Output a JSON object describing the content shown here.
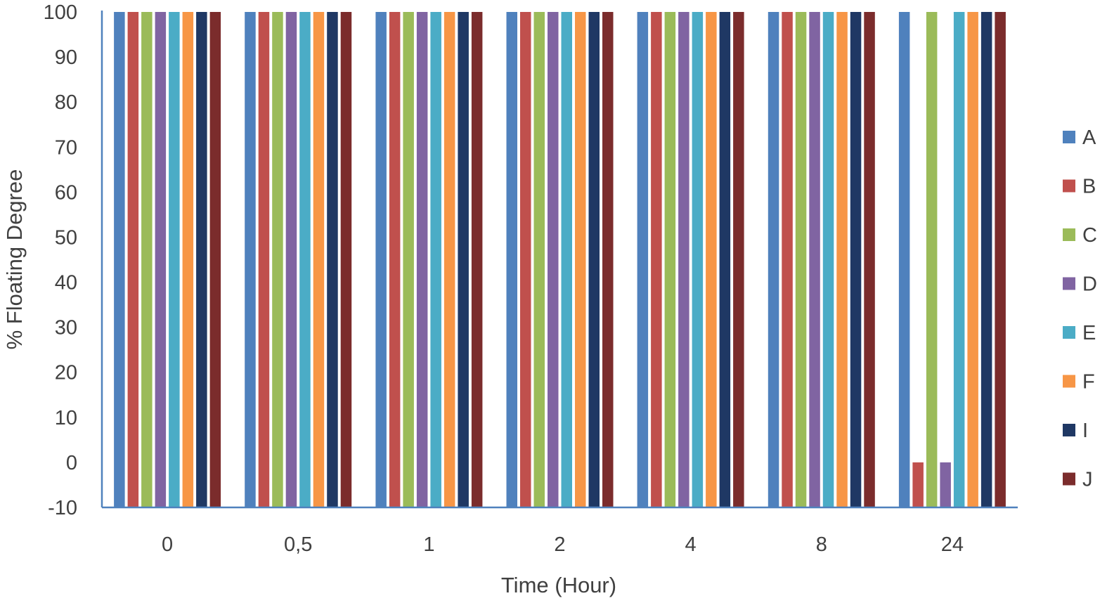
{
  "chart_data": {
    "type": "bar",
    "title": "",
    "xlabel": "Time (Hour)",
    "ylabel": "% Floating Degree",
    "ylim": [
      -10,
      100
    ],
    "yticks": [
      100,
      90,
      80,
      70,
      60,
      50,
      40,
      30,
      20,
      10,
      0,
      -10
    ],
    "grid": false,
    "legend_position": "right",
    "categories": [
      "0",
      "0,5",
      "1",
      "2",
      "4",
      "8",
      "24"
    ],
    "series": [
      {
        "name": "A",
        "color": "#4F81BD",
        "values": [
          100,
          100,
          100,
          100,
          100,
          100,
          100
        ]
      },
      {
        "name": "B",
        "color": "#C0504D",
        "values": [
          100,
          100,
          100,
          100,
          100,
          100,
          0
        ]
      },
      {
        "name": "C",
        "color": "#9BBB59",
        "values": [
          100,
          100,
          100,
          100,
          100,
          100,
          100
        ]
      },
      {
        "name": "D",
        "color": "#8064A2",
        "values": [
          100,
          100,
          100,
          100,
          100,
          100,
          0
        ]
      },
      {
        "name": "E",
        "color": "#4BACC6",
        "values": [
          100,
          100,
          100,
          100,
          100,
          100,
          100
        ]
      },
      {
        "name": "F",
        "color": "#F79646",
        "values": [
          100,
          100,
          100,
          100,
          100,
          100,
          100
        ]
      },
      {
        "name": "I",
        "color": "#1F3864",
        "values": [
          100,
          100,
          100,
          100,
          100,
          100,
          100
        ]
      },
      {
        "name": "J",
        "color": "#7B2C2C",
        "values": [
          100,
          100,
          100,
          100,
          100,
          100,
          100
        ]
      }
    ],
    "axis_color": "#4F81BD"
  }
}
